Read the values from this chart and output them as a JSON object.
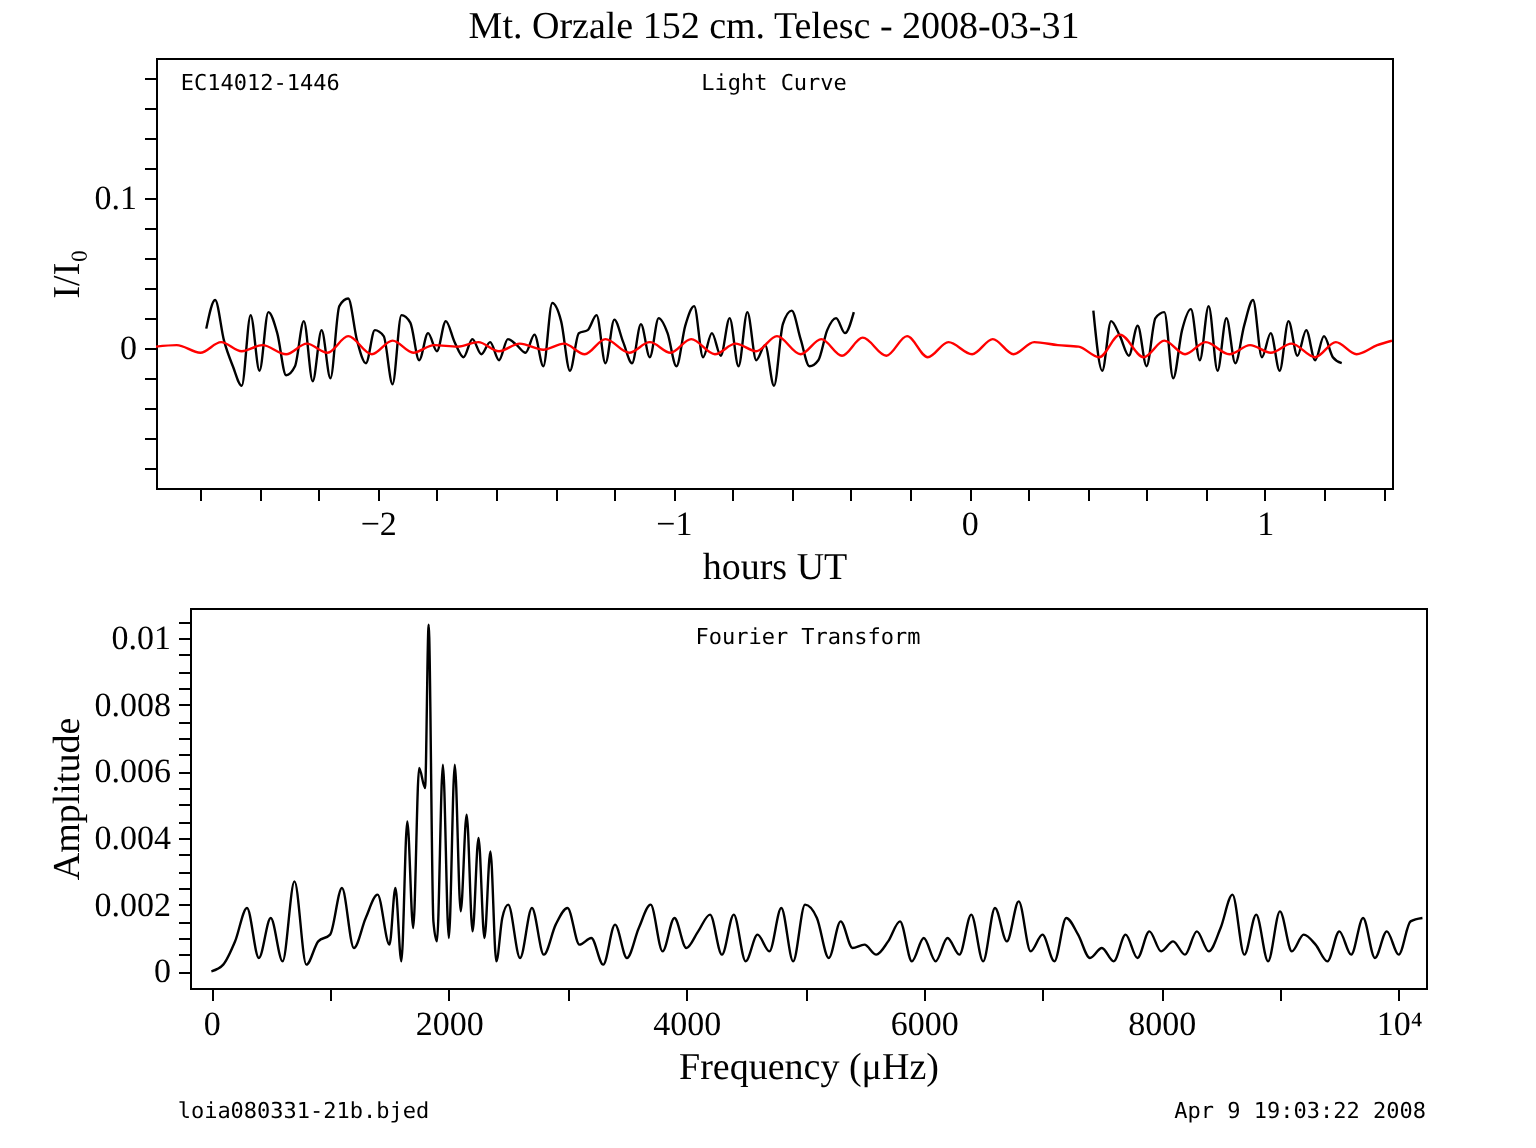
{
  "chart_data": [
    {
      "type": "line",
      "title": "Mt. Orzale 152 cm. Telesc - 2008-03-31",
      "xlabel": "hours UT",
      "ylabel": "I/I₀",
      "annotations": [
        "EC14012-1446",
        "Light Curve"
      ],
      "xlim": [
        -2.75,
        1.43
      ],
      "ylim": [
        -0.093,
        0.193
      ],
      "xticks": [
        {
          "value": -2.6,
          "label": null
        },
        {
          "value": -2.4,
          "label": null
        },
        {
          "value": -2.2,
          "label": null
        },
        -2,
        {
          "value": -1.8,
          "label": null
        },
        {
          "value": -1.6,
          "label": null
        },
        {
          "value": -1.4,
          "label": null
        },
        {
          "value": -1.2,
          "label": null
        },
        -1,
        {
          "value": -0.8,
          "label": null
        },
        {
          "value": -0.6,
          "label": null
        },
        {
          "value": -0.4,
          "label": null
        },
        {
          "value": -0.2,
          "label": null
        },
        0,
        {
          "value": 0.2,
          "label": null
        },
        {
          "value": 0.4,
          "label": null
        },
        {
          "value": 0.6,
          "label": null
        },
        {
          "value": 0.8,
          "label": null
        },
        1,
        {
          "value": 1.2,
          "label": null
        },
        {
          "value": 1.4,
          "label": null
        }
      ],
      "yticks": [
        {
          "value": -0.08,
          "label": null
        },
        {
          "value": -0.06,
          "label": null
        },
        {
          "value": -0.04,
          "label": null
        },
        {
          "value": -0.02,
          "label": null
        },
        0,
        {
          "value": 0.02,
          "label": null
        },
        {
          "value": 0.04,
          "label": null
        },
        {
          "value": 0.06,
          "label": null
        },
        {
          "value": 0.08,
          "label": null
        },
        0.1,
        {
          "value": 0.12,
          "label": null
        },
        {
          "value": 0.14,
          "label": null
        },
        {
          "value": 0.16,
          "label": null
        },
        {
          "value": 0.18,
          "label": null
        }
      ],
      "series": [
        {
          "color": "#000000",
          "x": [
            -2.58,
            -2.55,
            -2.52,
            -2.49,
            -2.46,
            -2.43,
            -2.4,
            -2.37,
            -2.34,
            -2.31,
            -2.28,
            -2.25,
            -2.22,
            -2.19,
            -2.16,
            -2.13,
            -2.1,
            -2.07,
            -2.04,
            -2.01,
            -1.98,
            -1.95,
            -1.92,
            -1.89,
            -1.86,
            -1.83,
            -1.8,
            -1.77,
            -1.74,
            -1.71,
            -1.68,
            -1.65,
            -1.62,
            -1.59,
            -1.56,
            -1.53,
            -1.5,
            -1.47,
            -1.44,
            -1.41,
            -1.38,
            -1.35,
            -1.32,
            -1.29,
            -1.26,
            -1.23,
            -1.2,
            -1.17,
            -1.14,
            -1.11,
            -1.08,
            -1.05,
            -1.02,
            -0.99,
            -0.96,
            -0.93,
            -0.9,
            -0.87,
            -0.84,
            -0.81,
            -0.78,
            -0.75,
            -0.72,
            -0.69,
            -0.66,
            -0.63,
            -0.6,
            -0.57,
            -0.54,
            -0.51,
            -0.48,
            -0.45,
            -0.42,
            -0.39,
            0.0,
            0.42,
            0.45,
            0.48,
            0.51,
            0.54,
            0.57,
            0.6,
            0.63,
            0.66,
            0.69,
            0.72,
            0.75,
            0.78,
            0.81,
            0.84,
            0.87,
            0.9,
            0.93,
            0.96,
            0.99,
            1.02,
            1.05,
            1.08,
            1.11,
            1.14,
            1.17,
            1.2,
            1.23,
            1.26
          ],
          "values": [
            0.013,
            0.032,
            0.005,
            -0.012,
            -0.025,
            0.022,
            -0.015,
            0.024,
            0.01,
            -0.018,
            -0.012,
            0.018,
            -0.022,
            0.012,
            -0.02,
            0.028,
            0.033,
            0.005,
            -0.01,
            0.012,
            0.008,
            -0.024,
            0.022,
            0.017,
            -0.008,
            0.01,
            -0.002,
            0.018,
            0.004,
            -0.006,
            0.006,
            -0.004,
            0.004,
            -0.008,
            0.006,
            0.002,
            -0.003,
            0.009,
            -0.012,
            0.03,
            0.018,
            -0.015,
            0.01,
            0.012,
            0.022,
            -0.01,
            0.019,
            0.004,
            -0.01,
            0.016,
            -0.006,
            0.02,
            0.01,
            -0.012,
            0.015,
            0.028,
            -0.006,
            0.01,
            -0.005,
            0.02,
            -0.012,
            0.024,
            -0.008,
            0.002,
            -0.025,
            0.016,
            0.025,
            0.006,
            -0.012,
            -0.008,
            0.012,
            0.02,
            0.01,
            0.024,
            null,
            0.025,
            -0.015,
            0.018,
            0.008,
            -0.005,
            0.015,
            -0.012,
            0.02,
            0.024,
            -0.02,
            0.012,
            0.026,
            -0.008,
            0.028,
            -0.015,
            0.02,
            -0.01,
            0.015,
            0.032,
            -0.006,
            0.01,
            -0.015,
            0.018,
            -0.005,
            0.012,
            -0.008,
            0.008,
            -0.006,
            -0.01
          ]
        },
        {
          "color": "#ff0000",
          "x": [
            -2.75,
            -2.68,
            -2.6,
            -2.53,
            -2.46,
            -2.39,
            -2.31,
            -2.24,
            -2.17,
            -2.1,
            -2.02,
            -1.95,
            -1.88,
            -1.81,
            -1.73,
            -1.66,
            -1.59,
            -1.52,
            -1.44,
            -1.37,
            -1.3,
            -1.23,
            -1.15,
            -1.08,
            -1.01,
            -0.94,
            -0.86,
            -0.79,
            -0.72,
            -0.65,
            -0.57,
            -0.5,
            -0.43,
            -0.36,
            -0.28,
            -0.21,
            -0.14,
            -0.07,
            0.01,
            0.08,
            0.15,
            0.22,
            0.3,
            0.37,
            0.44,
            0.51,
            0.59,
            0.66,
            0.73,
            0.8,
            0.88,
            0.95,
            1.02,
            1.09,
            1.17,
            1.24,
            1.31,
            1.38,
            1.43
          ],
          "values": [
            0.001,
            0.002,
            -0.003,
            0.004,
            -0.002,
            0.002,
            -0.004,
            0.003,
            -0.003,
            0.008,
            -0.004,
            0.005,
            -0.003,
            0.002,
            0.001,
            0.004,
            -0.002,
            0.003,
            -0.001,
            0.003,
            -0.004,
            0.006,
            -0.003,
            0.004,
            -0.003,
            0.006,
            -0.004,
            0.003,
            -0.002,
            0.008,
            -0.004,
            0.006,
            -0.005,
            0.007,
            -0.005,
            0.008,
            -0.006,
            0.004,
            -0.004,
            0.006,
            -0.004,
            0.004,
            0.002,
            0.001,
            -0.006,
            0.009,
            -0.006,
            0.005,
            -0.004,
            0.004,
            -0.004,
            0.002,
            -0.003,
            0.003,
            -0.006,
            0.004,
            -0.004,
            0.002,
            0.005
          ]
        }
      ]
    },
    {
      "type": "line",
      "xlabel": "Frequency (μHz)",
      "ylabel": "Amplitude",
      "annotations": [
        "Fourier Transform",
        "loia080331-21b.bjed",
        "Apr  9 19:03:22 2008"
      ],
      "xlim": [
        -180,
        10230
      ],
      "ylim": [
        -0.0005,
        0.0109
      ],
      "xticks": [
        0,
        {
          "value": 1000,
          "label": null
        },
        2000,
        {
          "value": 3000,
          "label": null
        },
        4000,
        {
          "value": 5000,
          "label": null
        },
        6000,
        {
          "value": 7000,
          "label": null
        },
        8000,
        {
          "value": 9000,
          "label": null
        },
        {
          "value": 10000,
          "label": "10⁴"
        }
      ],
      "yticks": [
        0,
        {
          "value": 0.0005,
          "label": null
        },
        {
          "value": 0.001,
          "label": null
        },
        {
          "value": 0.0015,
          "label": null
        },
        0.002,
        {
          "value": 0.0025,
          "label": null
        },
        {
          "value": 0.003,
          "label": null
        },
        {
          "value": 0.0035,
          "label": null
        },
        0.004,
        {
          "value": 0.0045,
          "label": null
        },
        {
          "value": 0.005,
          "label": null
        },
        {
          "value": 0.0055,
          "label": null
        },
        0.006,
        {
          "value": 0.0065,
          "label": null
        },
        {
          "value": 0.007,
          "label": null
        },
        {
          "value": 0.0075,
          "label": null
        },
        0.008,
        {
          "value": 0.0085,
          "label": null
        },
        {
          "value": 0.009,
          "label": null
        },
        {
          "value": 0.0095,
          "label": null
        },
        0.01,
        {
          "value": 0.0105,
          "label": null
        }
      ],
      "series": [
        {
          "color": "#000000",
          "x": [
            0,
            100,
            200,
            300,
            400,
            500,
            600,
            700,
            800,
            900,
            1000,
            1100,
            1200,
            1300,
            1400,
            1500,
            1550,
            1600,
            1650,
            1700,
            1750,
            1800,
            1830,
            1870,
            1900,
            1950,
            2000,
            2050,
            2100,
            2150,
            2200,
            2250,
            2300,
            2350,
            2400,
            2450,
            2500,
            2600,
            2700,
            2800,
            2900,
            3000,
            3100,
            3200,
            3300,
            3400,
            3500,
            3600,
            3700,
            3800,
            3900,
            4000,
            4100,
            4200,
            4300,
            4400,
            4500,
            4600,
            4700,
            4800,
            4900,
            5000,
            5100,
            5200,
            5300,
            5400,
            5500,
            5600,
            5700,
            5800,
            5900,
            6000,
            6100,
            6200,
            6300,
            6400,
            6500,
            6600,
            6700,
            6800,
            6900,
            7000,
            7100,
            7200,
            7300,
            7400,
            7500,
            7600,
            7700,
            7800,
            7900,
            8000,
            8100,
            8200,
            8300,
            8400,
            8500,
            8600,
            8700,
            8800,
            8900,
            9000,
            9100,
            9200,
            9300,
            9400,
            9500,
            9600,
            9700,
            9800,
            9900,
            10000,
            10100,
            10200
          ],
          "values": [
            0,
            0.0002,
            0.0009,
            0.0019,
            0.0004,
            0.0016,
            0.0003,
            0.0027,
            0.0002,
            0.0009,
            0.0011,
            0.0025,
            0.0007,
            0.0016,
            0.0023,
            0.0008,
            0.0025,
            0.0003,
            0.0045,
            0.0013,
            0.0061,
            0.0055,
            0.0104,
            0.0015,
            0.0009,
            0.0062,
            0.001,
            0.0062,
            0.0018,
            0.0047,
            0.0012,
            0.004,
            0.001,
            0.0036,
            0.0003,
            0.0016,
            0.002,
            0.0004,
            0.0019,
            0.0005,
            0.0014,
            0.0019,
            0.0008,
            0.001,
            0.0002,
            0.0014,
            0.0004,
            0.0013,
            0.002,
            0.0006,
            0.0016,
            0.0007,
            0.0012,
            0.0017,
            0.0005,
            0.0017,
            0.0003,
            0.0011,
            0.0006,
            0.0019,
            0.0003,
            0.002,
            0.0016,
            0.0004,
            0.0015,
            0.0007,
            0.0008,
            0.0005,
            0.0009,
            0.0015,
            0.0003,
            0.001,
            0.0003,
            0.001,
            0.0005,
            0.0017,
            0.0003,
            0.0019,
            0.0009,
            0.0021,
            0.0006,
            0.0011,
            0.0003,
            0.0016,
            0.0011,
            0.0004,
            0.0007,
            0.0003,
            0.0011,
            0.0004,
            0.0012,
            0.0006,
            0.0009,
            0.0005,
            0.0012,
            0.0006,
            0.0013,
            0.0023,
            0.0005,
            0.0017,
            0.0003,
            0.0018,
            0.0006,
            0.0011,
            0.0008,
            0.0003,
            0.0012,
            0.0005,
            0.0016,
            0.0004,
            0.0012,
            0.0005,
            0.0015,
            0.0016
          ]
        }
      ]
    }
  ]
}
